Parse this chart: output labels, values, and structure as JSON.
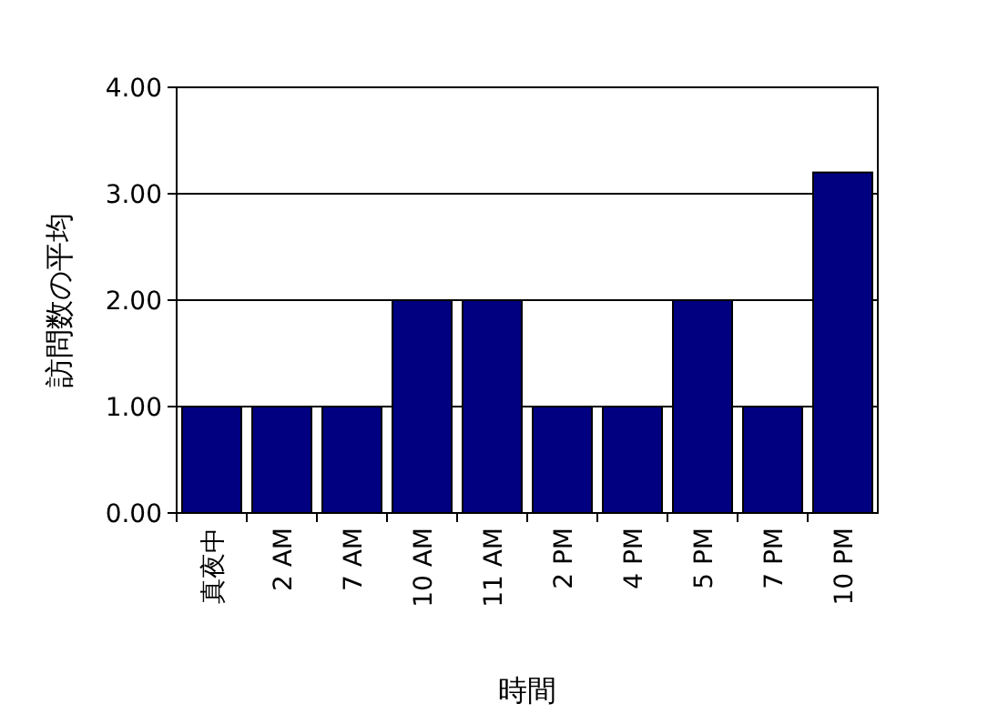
{
  "chart_data": {
    "type": "bar",
    "xlabel": "時間",
    "ylabel": "訪問数の平均",
    "categories": [
      "真夜中",
      "2 AM",
      "7 AM",
      "10 AM",
      "11 AM",
      "2 PM",
      "4 PM",
      "5 PM",
      "7 PM",
      "10 PM"
    ],
    "values": [
      1,
      1,
      1,
      2,
      2,
      1,
      1,
      2,
      1,
      3.2
    ],
    "color": "#000080",
    "ylim": [
      0,
      4
    ],
    "yticks": [
      {
        "value": 0,
        "label": "0.00"
      },
      {
        "value": 1,
        "label": "1.00"
      },
      {
        "value": 2,
        "label": "2.00"
      },
      {
        "value": 3,
        "label": "3.00"
      },
      {
        "value": 4,
        "label": "4.00"
      }
    ],
    "grid": "y"
  }
}
